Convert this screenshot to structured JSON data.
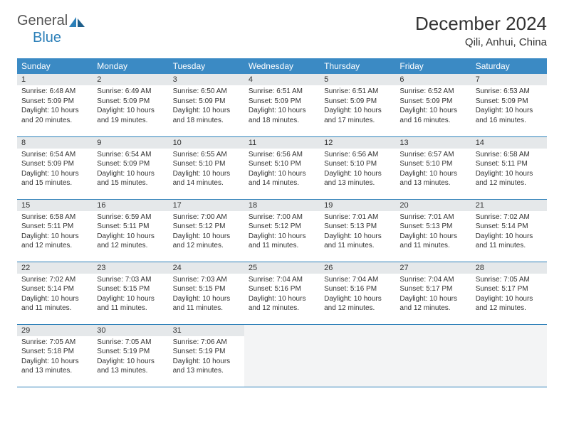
{
  "logo": {
    "gray": "General",
    "blue": "Blue"
  },
  "title": "December 2024",
  "location": "Qili, Anhui, China",
  "colors": {
    "header_bg": "#3b8ac4",
    "header_text": "#ffffff",
    "daynum_bg": "#e5e8ea",
    "border": "#2b7fb8",
    "logo_blue": "#2b7fb8",
    "text": "#333333"
  },
  "weekdays": [
    "Sunday",
    "Monday",
    "Tuesday",
    "Wednesday",
    "Thursday",
    "Friday",
    "Saturday"
  ],
  "days": [
    {
      "n": 1,
      "sr": "6:48 AM",
      "ss": "5:09 PM",
      "dh": 10,
      "dm": 20
    },
    {
      "n": 2,
      "sr": "6:49 AM",
      "ss": "5:09 PM",
      "dh": 10,
      "dm": 19
    },
    {
      "n": 3,
      "sr": "6:50 AM",
      "ss": "5:09 PM",
      "dh": 10,
      "dm": 18
    },
    {
      "n": 4,
      "sr": "6:51 AM",
      "ss": "5:09 PM",
      "dh": 10,
      "dm": 18
    },
    {
      "n": 5,
      "sr": "6:51 AM",
      "ss": "5:09 PM",
      "dh": 10,
      "dm": 17
    },
    {
      "n": 6,
      "sr": "6:52 AM",
      "ss": "5:09 PM",
      "dh": 10,
      "dm": 16
    },
    {
      "n": 7,
      "sr": "6:53 AM",
      "ss": "5:09 PM",
      "dh": 10,
      "dm": 16
    },
    {
      "n": 8,
      "sr": "6:54 AM",
      "ss": "5:09 PM",
      "dh": 10,
      "dm": 15
    },
    {
      "n": 9,
      "sr": "6:54 AM",
      "ss": "5:09 PM",
      "dh": 10,
      "dm": 15
    },
    {
      "n": 10,
      "sr": "6:55 AM",
      "ss": "5:10 PM",
      "dh": 10,
      "dm": 14
    },
    {
      "n": 11,
      "sr": "6:56 AM",
      "ss": "5:10 PM",
      "dh": 10,
      "dm": 14
    },
    {
      "n": 12,
      "sr": "6:56 AM",
      "ss": "5:10 PM",
      "dh": 10,
      "dm": 13
    },
    {
      "n": 13,
      "sr": "6:57 AM",
      "ss": "5:10 PM",
      "dh": 10,
      "dm": 13
    },
    {
      "n": 14,
      "sr": "6:58 AM",
      "ss": "5:11 PM",
      "dh": 10,
      "dm": 12
    },
    {
      "n": 15,
      "sr": "6:58 AM",
      "ss": "5:11 PM",
      "dh": 10,
      "dm": 12
    },
    {
      "n": 16,
      "sr": "6:59 AM",
      "ss": "5:11 PM",
      "dh": 10,
      "dm": 12
    },
    {
      "n": 17,
      "sr": "7:00 AM",
      "ss": "5:12 PM",
      "dh": 10,
      "dm": 12
    },
    {
      "n": 18,
      "sr": "7:00 AM",
      "ss": "5:12 PM",
      "dh": 10,
      "dm": 11
    },
    {
      "n": 19,
      "sr": "7:01 AM",
      "ss": "5:13 PM",
      "dh": 10,
      "dm": 11
    },
    {
      "n": 20,
      "sr": "7:01 AM",
      "ss": "5:13 PM",
      "dh": 10,
      "dm": 11
    },
    {
      "n": 21,
      "sr": "7:02 AM",
      "ss": "5:14 PM",
      "dh": 10,
      "dm": 11
    },
    {
      "n": 22,
      "sr": "7:02 AM",
      "ss": "5:14 PM",
      "dh": 10,
      "dm": 11
    },
    {
      "n": 23,
      "sr": "7:03 AM",
      "ss": "5:15 PM",
      "dh": 10,
      "dm": 11
    },
    {
      "n": 24,
      "sr": "7:03 AM",
      "ss": "5:15 PM",
      "dh": 10,
      "dm": 11
    },
    {
      "n": 25,
      "sr": "7:04 AM",
      "ss": "5:16 PM",
      "dh": 10,
      "dm": 12
    },
    {
      "n": 26,
      "sr": "7:04 AM",
      "ss": "5:16 PM",
      "dh": 10,
      "dm": 12
    },
    {
      "n": 27,
      "sr": "7:04 AM",
      "ss": "5:17 PM",
      "dh": 10,
      "dm": 12
    },
    {
      "n": 28,
      "sr": "7:05 AM",
      "ss": "5:17 PM",
      "dh": 10,
      "dm": 12
    },
    {
      "n": 29,
      "sr": "7:05 AM",
      "ss": "5:18 PM",
      "dh": 10,
      "dm": 13
    },
    {
      "n": 30,
      "sr": "7:05 AM",
      "ss": "5:19 PM",
      "dh": 10,
      "dm": 13
    },
    {
      "n": 31,
      "sr": "7:06 AM",
      "ss": "5:19 PM",
      "dh": 10,
      "dm": 13
    }
  ],
  "labels": {
    "sunrise": "Sunrise:",
    "sunset": "Sunset:",
    "daylight": "Daylight:",
    "hours": "hours",
    "and": "and",
    "minutes": "minutes."
  }
}
